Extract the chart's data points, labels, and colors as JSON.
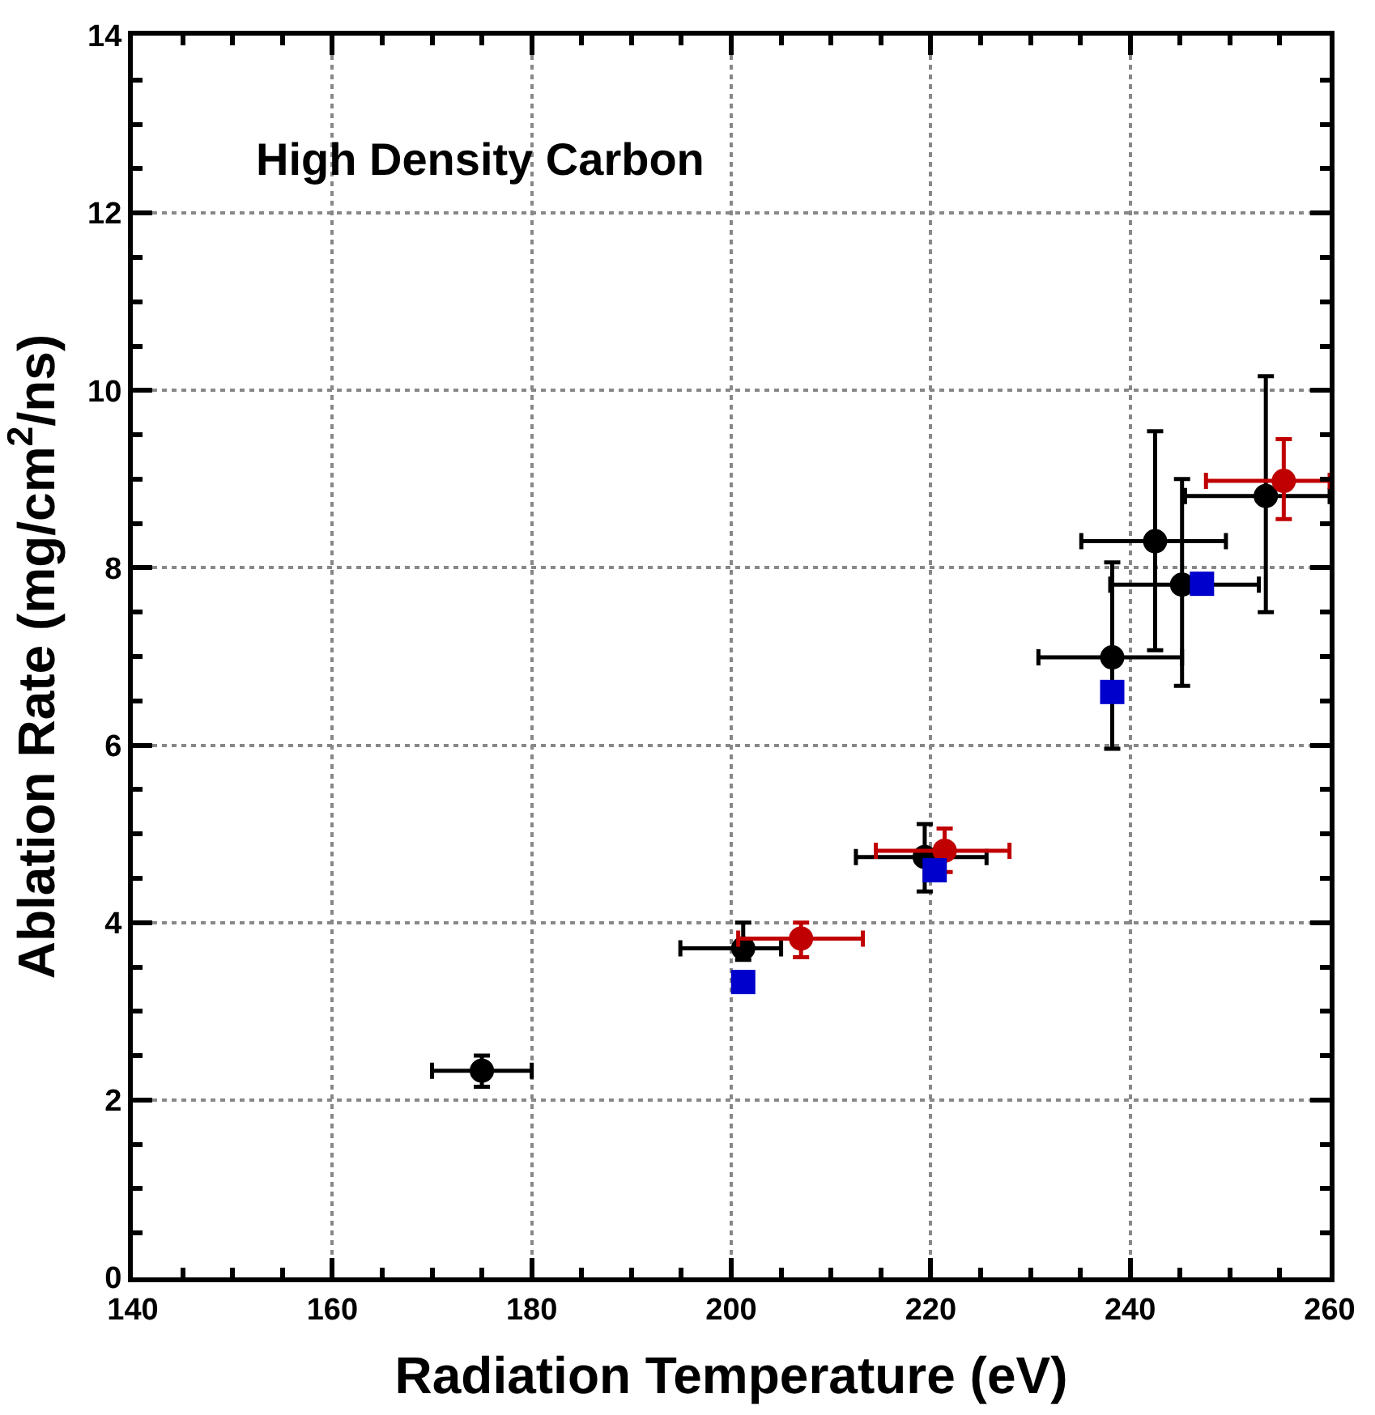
{
  "chart_data": {
    "type": "scatter",
    "xlabel": "Radiation Temperature (eV)",
    "ylabel": "Ablation Rate (mg/cm$^{2}$/ns)",
    "annotations": [
      "High Density Carbon"
    ],
    "xlim": [
      140,
      260
    ],
    "ylim": [
      0,
      14
    ],
    "xticks": [
      140,
      {
        "value": 145,
        "label": null
      },
      {
        "value": 150,
        "label": null
      },
      {
        "value": 155,
        "label": null
      },
      160,
      {
        "value": 165,
        "label": null
      },
      {
        "value": 170,
        "label": null
      },
      {
        "value": 175,
        "label": null
      },
      180,
      {
        "value": 185,
        "label": null
      },
      {
        "value": 190,
        "label": null
      },
      {
        "value": 195,
        "label": null
      },
      200,
      {
        "value": 205,
        "label": null
      },
      {
        "value": 210,
        "label": null
      },
      {
        "value": 215,
        "label": null
      },
      220,
      {
        "value": 225,
        "label": null
      },
      {
        "value": 230,
        "label": null
      },
      {
        "value": 235,
        "label": null
      },
      240,
      {
        "value": 245,
        "label": null
      },
      {
        "value": 250,
        "label": null
      },
      {
        "value": 255,
        "label": null
      },
      260
    ],
    "yticks": [
      0,
      {
        "value": 0.5,
        "label": null
      },
      {
        "value": 1,
        "label": null
      },
      {
        "value": 1.5,
        "label": null
      },
      2,
      {
        "value": 2.5,
        "label": null
      },
      {
        "value": 3,
        "label": null
      },
      {
        "value": 3.5,
        "label": null
      },
      4,
      {
        "value": 4.5,
        "label": null
      },
      {
        "value": 5,
        "label": null
      },
      {
        "value": 5.5,
        "label": null
      },
      6,
      {
        "value": 6.5,
        "label": null
      },
      {
        "value": 7,
        "label": null
      },
      {
        "value": 7.5,
        "label": null
      },
      8,
      {
        "value": 8.5,
        "label": null
      },
      {
        "value": 9,
        "label": null
      },
      {
        "value": 9.5,
        "label": null
      },
      10,
      {
        "value": 10.5,
        "label": null
      },
      {
        "value": 11,
        "label": null
      },
      {
        "value": 11.5,
        "label": null
      },
      12,
      {
        "value": 12.5,
        "label": null
      },
      {
        "value": 13,
        "label": null
      },
      {
        "value": 13.5,
        "label": null
      },
      14
    ],
    "grid": true,
    "series": [
      {
        "color": "#000000",
        "marker": "circle",
        "x": [
          175,
          201.2,
          219.4,
          238.2,
          242.5,
          245.2,
          253.6
        ],
        "values": [
          2.33,
          3.71,
          4.74,
          6.99,
          8.3,
          7.81,
          8.81
        ],
        "xerrors": [
          [
            170,
            180
          ],
          [
            194.9,
            205
          ],
          [
            212.5,
            225.6
          ],
          [
            230.8,
            245.2
          ],
          [
            235.1,
            249.6
          ],
          [
            238,
            252.9
          ],
          [
            245.5,
            260
          ]
        ],
        "errors": [
          [
            2.15,
            2.5
          ],
          [
            3.58,
            4.0
          ],
          [
            4.35,
            5.11
          ],
          [
            5.96,
            8.06
          ],
          [
            7.07,
            9.54
          ],
          [
            6.67,
            9.0
          ],
          [
            7.5,
            10.16
          ]
        ]
      },
      {
        "color": "#c00000",
        "marker": "circle",
        "x": [
          207,
          221.4,
          255.4
        ],
        "values": [
          3.82,
          4.81,
          8.98
        ],
        "xerrors": [
          [
            200.7,
            213.2
          ],
          [
            214.5,
            227.9
          ],
          [
            247.6,
            260
          ]
        ],
        "errors": [
          [
            3.61,
            4.0
          ],
          [
            4.57,
            5.06
          ],
          [
            8.55,
            9.45
          ]
        ]
      },
      {
        "color": "#0000cc",
        "marker": "square",
        "x": [
          201.2,
          220.4,
          238.2,
          247.2
        ],
        "values": [
          3.33,
          4.59,
          6.6,
          7.82
        ]
      }
    ]
  }
}
